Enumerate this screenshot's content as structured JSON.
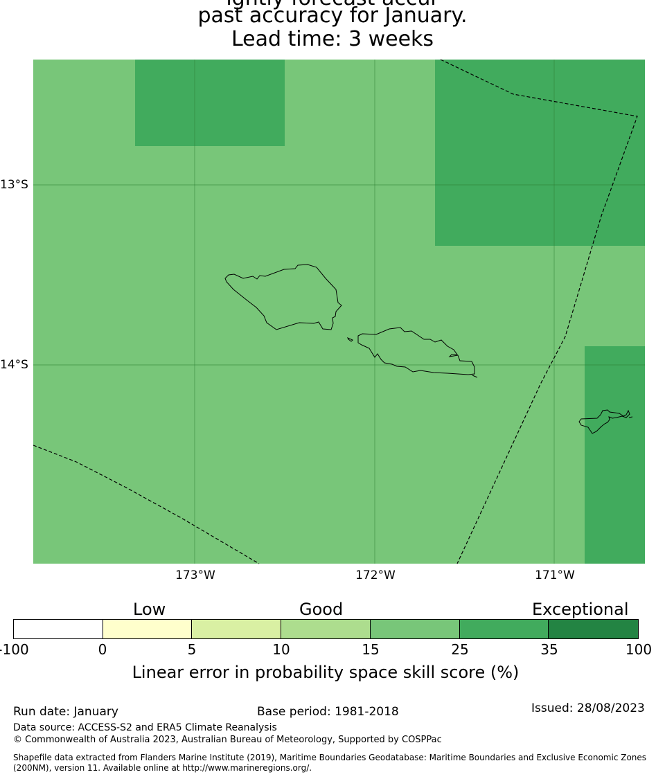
{
  "title": {
    "line1": "ightly forecast accur",
    "line2": "past accuracy for January.",
    "line3": "Lead time: 3 weeks"
  },
  "map": {
    "latitude_labels": [
      "13°S",
      "14°S"
    ],
    "longitude_labels": [
      "173°W",
      "172°W",
      "171°W"
    ],
    "skill_category_colors": {
      "15-25": "#78c679",
      "25-35": "#41ab5d"
    },
    "features": [
      "Savai'i island outline",
      "Upolu island outline",
      "Tutuila island outline",
      "EEZ boundary dashed lines"
    ]
  },
  "legend": {
    "categories": [
      "Low",
      "Good",
      "Exceptional"
    ],
    "ticks": [
      "-100",
      "0",
      "5",
      "10",
      "15",
      "25",
      "35",
      "100"
    ],
    "colors": [
      "#ffffff",
      "#ffffcc",
      "#d9f0a3",
      "#addd8e",
      "#78c679",
      "#41ab5d",
      "#238443"
    ],
    "label": "Linear error in probability space skill score (%)"
  },
  "footer": {
    "run_date": "Run date: January",
    "base_period": "Base period: 1981-2018",
    "issued": "Issued: 28/08/2023",
    "data_source": "Data source: ACCESS-S2 and ERA5 Climate Reanalysis",
    "copyright": "© Commonwealth of Australia 2023, Australian Bureau of Meteorology, Supported by COSPPac",
    "shapefile": "Shapefile data extracted from Flanders Marine Institute (2019), Maritime Boundaries Geodatabase: Maritime Boundaries and Exclusive Economic Zones (200NM), version 11. Available online at http://www.marineregions.org/."
  }
}
